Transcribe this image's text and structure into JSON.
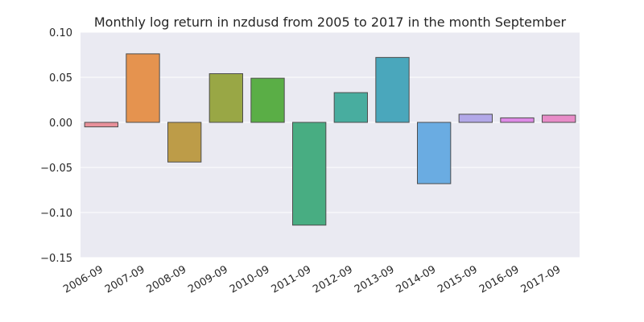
{
  "chart_data": {
    "type": "bar",
    "title": "Monthly log return in nzdusd from 2005 to 2017 in the month September",
    "xlabel": "",
    "ylabel": "",
    "categories": [
      "2006-09",
      "2007-09",
      "2008-09",
      "2009-09",
      "2010-09",
      "2011-09",
      "2012-09",
      "2013-09",
      "2014-09",
      "2015-09",
      "2016-09",
      "2017-09"
    ],
    "values": [
      -0.005,
      0.076,
      -0.044,
      0.054,
      0.049,
      -0.114,
      0.033,
      0.072,
      -0.068,
      0.009,
      0.005,
      0.008
    ],
    "colors": [
      "#e8909a",
      "#e5934f",
      "#bd9c48",
      "#99a745",
      "#5aae46",
      "#48ad82",
      "#48ad9f",
      "#4aa7bc",
      "#6aace2",
      "#b2a8e8",
      "#dd8ae6",
      "#e88cc8"
    ],
    "ylim": [
      -0.15,
      0.1
    ],
    "yticks": [
      0.1,
      0.05,
      0.0,
      -0.05,
      -0.1,
      -0.15
    ],
    "ytick_labels": [
      "0.10",
      "0.05",
      "0.00",
      "−0.05",
      "−0.10",
      "−0.15"
    ],
    "grid": true,
    "background": "#eaeaf2"
  }
}
